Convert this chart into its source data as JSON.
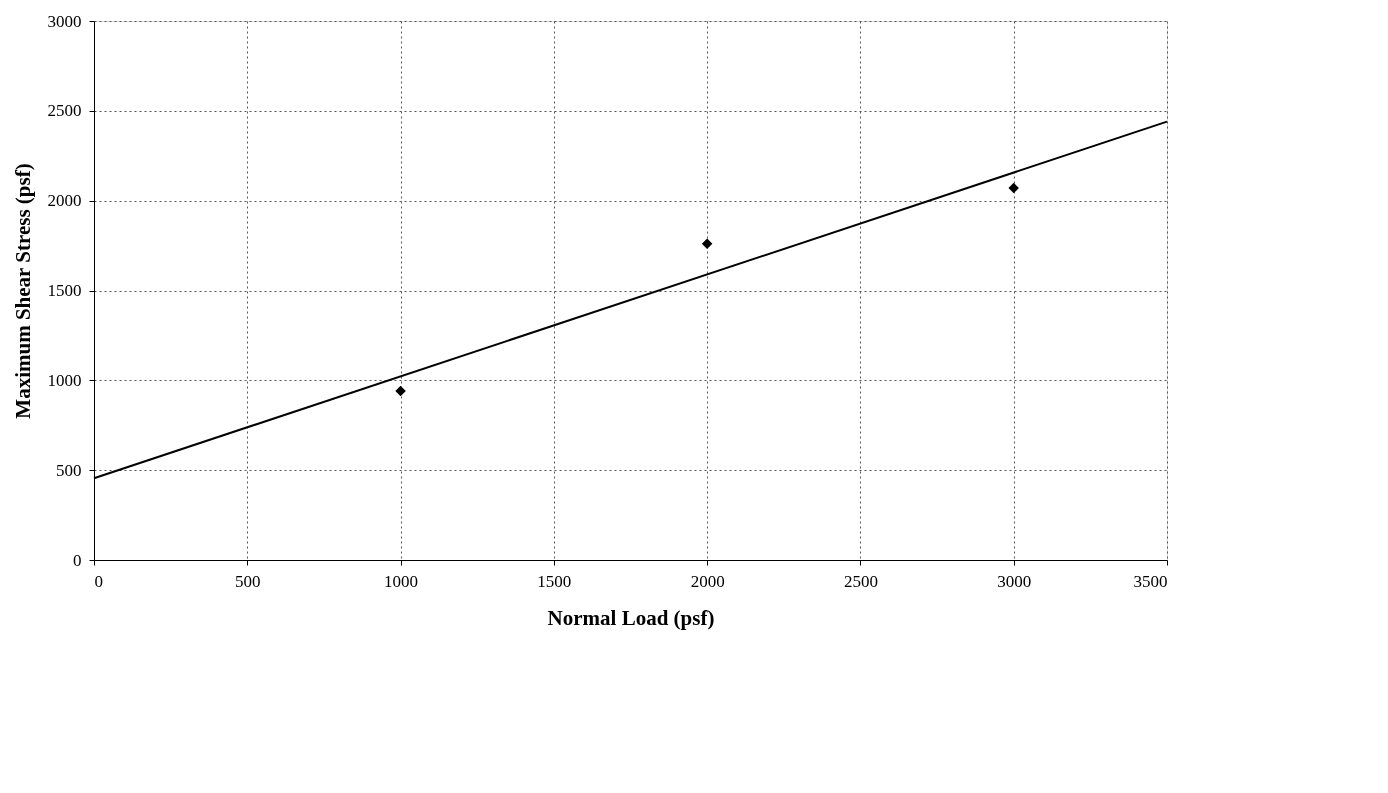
{
  "chart_data": {
    "type": "scatter",
    "xlabel": "Normal Load (psf)",
    "ylabel": "Maximum Shear Stress (psf)",
    "xlim": [
      0,
      3500
    ],
    "xticks": [
      0,
      500,
      1000,
      1500,
      2000,
      2500,
      3000,
      3500
    ],
    "ylim": [
      0,
      3000
    ],
    "yticks": [
      0,
      500,
      1000,
      1500,
      2000,
      2500,
      3000
    ],
    "grid": true,
    "series": [
      {
        "color": "#000000",
        "marker": "diamond",
        "x": [
          1000,
          2000,
          3000
        ],
        "values": [
          940,
          1760,
          2070
        ]
      },
      {
        "type": "line",
        "color": "#000000",
        "line_style": "solid",
        "x": [
          0,
          3500
        ],
        "values": [
          455,
          2440
        ]
      }
    ]
  }
}
